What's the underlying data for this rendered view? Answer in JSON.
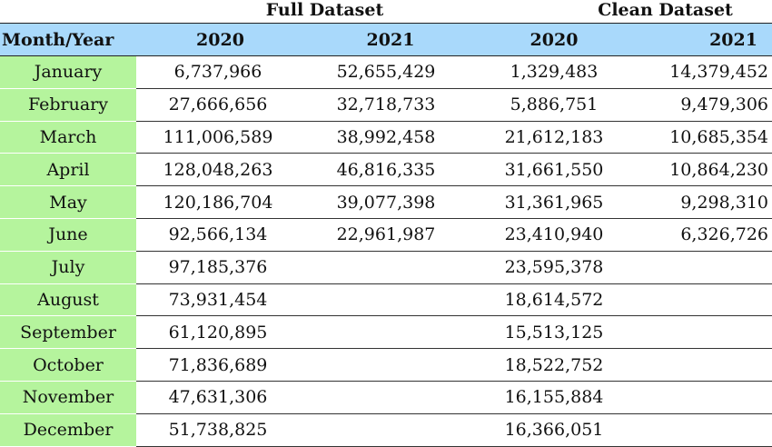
{
  "groups": {
    "full": "Full Dataset",
    "clean": "Clean Dataset"
  },
  "headers": {
    "month_year": "Month/Year",
    "full_2020": "2020",
    "full_2021": "2021",
    "clean_2020": "2020",
    "clean_2021": "2021"
  },
  "colors": {
    "header_bg": "#a9d9fb",
    "month_bg": "#b5f49d"
  },
  "rows": [
    {
      "month": "January",
      "full_2020": "6,737,966",
      "full_2021": "52,655,429",
      "clean_2020": "1,329,483",
      "clean_2021": "14,379,452"
    },
    {
      "month": "February",
      "full_2020": "27,666,656",
      "full_2021": "32,718,733",
      "clean_2020": "5,886,751",
      "clean_2021": "9,479,306"
    },
    {
      "month": "March",
      "full_2020": "111,006,589",
      "full_2021": "38,992,458",
      "clean_2020": "21,612,183",
      "clean_2021": "10,685,354"
    },
    {
      "month": "April",
      "full_2020": "128,048,263",
      "full_2021": "46,816,335",
      "clean_2020": "31,661,550",
      "clean_2021": "10,864,230"
    },
    {
      "month": "May",
      "full_2020": "120,186,704",
      "full_2021": "39,077,398",
      "clean_2020": "31,361,965",
      "clean_2021": "9,298,310"
    },
    {
      "month": "June",
      "full_2020": "92,566,134",
      "full_2021": "22,961,987",
      "clean_2020": "23,410,940",
      "clean_2021": "6,326,726"
    },
    {
      "month": "July",
      "full_2020": "97,185,376",
      "full_2021": "",
      "clean_2020": "23,595,378",
      "clean_2021": ""
    },
    {
      "month": "August",
      "full_2020": "73,931,454",
      "full_2021": "",
      "clean_2020": "18,614,572",
      "clean_2021": ""
    },
    {
      "month": "September",
      "full_2020": "61,120,895",
      "full_2021": "",
      "clean_2020": "15,513,125",
      "clean_2021": ""
    },
    {
      "month": "October",
      "full_2020": "71,836,689",
      "full_2021": "",
      "clean_2020": "18,522,752",
      "clean_2021": ""
    },
    {
      "month": "November",
      "full_2020": "47,631,306",
      "full_2021": "",
      "clean_2020": "16,155,884",
      "clean_2021": ""
    },
    {
      "month": "December",
      "full_2020": "51,738,825",
      "full_2021": "",
      "clean_2020": "16,366,051",
      "clean_2021": ""
    }
  ]
}
